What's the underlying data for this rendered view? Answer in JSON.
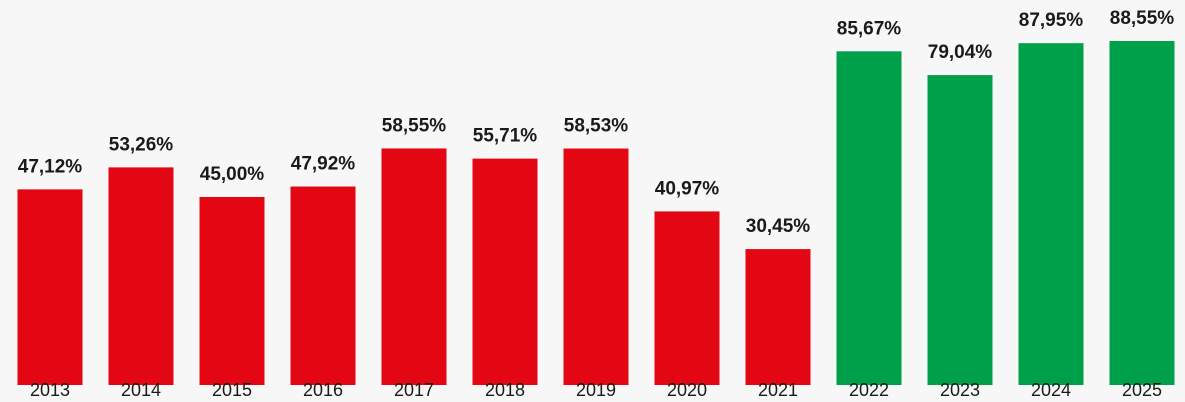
{
  "chart_data": {
    "type": "bar",
    "categories": [
      "2013",
      "2014",
      "2015",
      "2016",
      "2017",
      "2018",
      "2019",
      "2020",
      "2021",
      "2022",
      "2023",
      "2024",
      "2025"
    ],
    "values": [
      47.12,
      53.26,
      45.0,
      47.92,
      58.55,
      55.71,
      58.53,
      40.97,
      30.45,
      85.67,
      79.04,
      87.95,
      88.55
    ],
    "value_labels": [
      "47,12%",
      "53,26%",
      "45,00%",
      "47,92%",
      "58,55%",
      "55,71%",
      "58,53%",
      "40,97%",
      "30,45%",
      "85,67%",
      "79,04%",
      "87,95%",
      "88,55%"
    ],
    "colors": [
      "#e30613",
      "#e30613",
      "#e30613",
      "#e30613",
      "#e30613",
      "#e30613",
      "#e30613",
      "#e30613",
      "#e30613",
      "#00a04a",
      "#00a04a",
      "#00a04a",
      "#00a04a"
    ],
    "ylim": [
      -7.5,
      100
    ]
  }
}
